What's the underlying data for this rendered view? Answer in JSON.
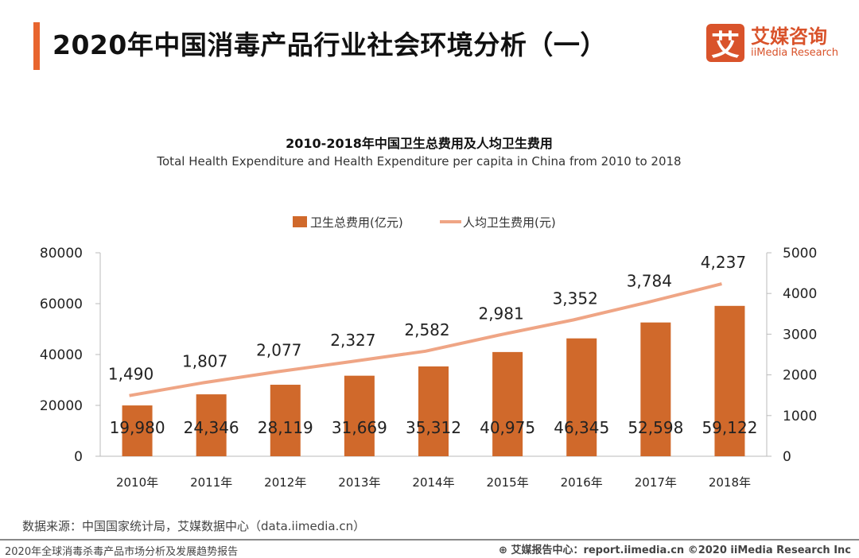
{
  "header": {
    "title": "2020年中国消毒产品行业社会环境分析（一）",
    "logo_mark": "艾",
    "logo_cn": "艾媒咨询",
    "logo_en": "iiMedia Research"
  },
  "colors": {
    "accent": "#E8652E",
    "bar": "#D0692B",
    "line": "#EFA585"
  },
  "chart_data": {
    "type": "bar+line",
    "title": "2010-2018年中国卫生总费用及人均卫生费用",
    "subtitle": "Total Health Expenditure and Health Expenditure per capita in China from 2010 to 2018",
    "categories": [
      "2010年",
      "2011年",
      "2012年",
      "2013年",
      "2014年",
      "2015年",
      "2016年",
      "2017年",
      "2018年"
    ],
    "series": [
      {
        "name": "卫生总费用(亿元)",
        "type": "bar",
        "axis": "left",
        "values": [
          19980,
          24346,
          28119,
          31669,
          35312,
          40975,
          46345,
          52598,
          59122
        ],
        "labels": [
          "19,980",
          "24,346",
          "28,119",
          "31,669",
          "35,312",
          "40,975",
          "46,345",
          "52,598",
          "59,122"
        ]
      },
      {
        "name": "人均卫生费用(元)",
        "type": "line",
        "axis": "right",
        "values": [
          1490,
          1807,
          2077,
          2327,
          2582,
          2981,
          3352,
          3784,
          4237
        ],
        "labels": [
          "1,490",
          "1,807",
          "2,077",
          "2,327",
          "2,582",
          "2,981",
          "3,352",
          "3,784",
          "4,237"
        ]
      }
    ],
    "left_axis": {
      "ylim": [
        0,
        80000
      ],
      "ticks": [
        "0",
        "20000",
        "40000",
        "60000",
        "80000"
      ]
    },
    "right_axis": {
      "ylim": [
        0,
        5000
      ],
      "ticks": [
        "0",
        "1000",
        "2000",
        "3000",
        "4000",
        "5000"
      ]
    },
    "legend_position": "top-center",
    "grid": false
  },
  "footer": {
    "source": "数据来源：中国国家统计局，艾媒数据中心（data.iimedia.cn）",
    "report": "2020年全球消毒杀毒产品市场分析及发展趋势报告",
    "right": "⊕ 艾媒报告中心：report.iimedia.cn   ©2020  iiMedia Research  Inc"
  }
}
